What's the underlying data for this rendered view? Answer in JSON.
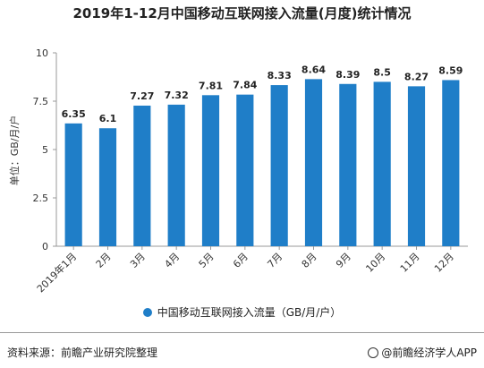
{
  "chart_data": {
    "type": "bar",
    "title": "2019年1-12月中国移动互联网接入流量(月度)统计情况",
    "xlabel": "",
    "ylabel": "单位：GB/月/户",
    "categories": [
      "2019年1月",
      "2月",
      "3月",
      "4月",
      "5月",
      "6月",
      "7月",
      "8月",
      "9月",
      "10月",
      "11月",
      "12月"
    ],
    "series": [
      {
        "name": "中国移动互联网接入流量（GB/月/户）",
        "values": [
          6.35,
          6.1,
          7.27,
          7.32,
          7.81,
          7.84,
          8.33,
          8.64,
          8.39,
          8.5,
          8.27,
          8.59
        ],
        "value_labels": [
          "6.35",
          "6.1",
          "7.27",
          "7.32",
          "7.81",
          "7.84",
          "8.33",
          "8.64",
          "8.39",
          "8.5",
          "8.27",
          "8.59"
        ]
      }
    ],
    "ylim": [
      0,
      10
    ],
    "yticks": [
      0,
      2.5,
      5,
      7.5,
      10
    ],
    "ytick_labels": [
      "0",
      "2.5",
      "5",
      "7.5",
      "10"
    ],
    "grid": false,
    "legend_position": "bottom-center",
    "bar_color": "#1f7ec8"
  },
  "footer": {
    "source": "资料来源：前瞻产业研究院整理",
    "brand": "@前瞻经济学人APP"
  }
}
